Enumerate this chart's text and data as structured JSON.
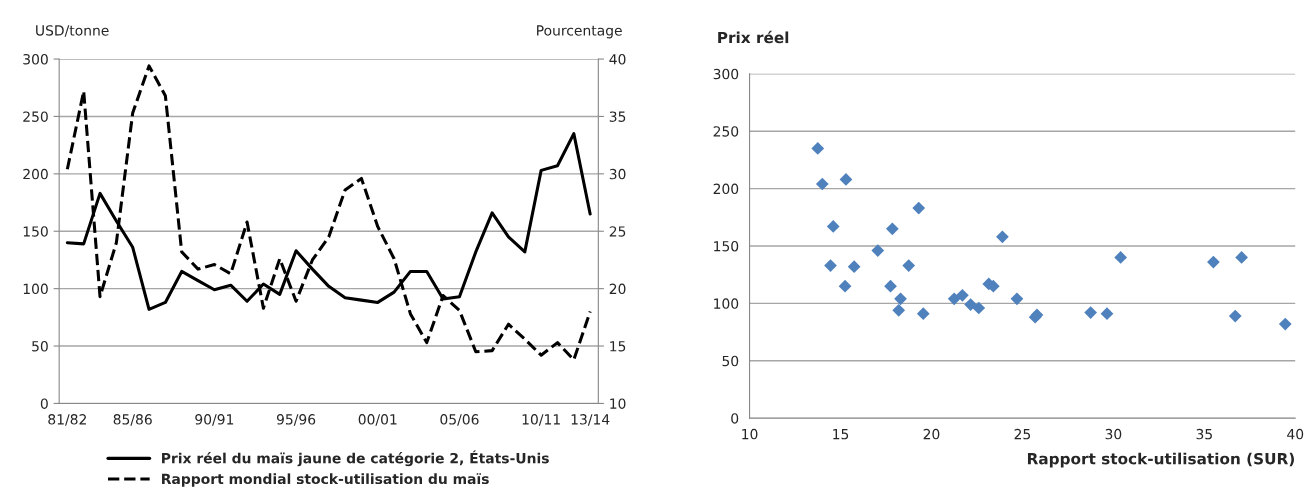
{
  "chart_data": [
    {
      "type": "line",
      "categories": [
        "81/82",
        null,
        null,
        null,
        "85/86",
        null,
        null,
        null,
        null,
        "90/91",
        null,
        null,
        null,
        null,
        "95/96",
        null,
        null,
        null,
        null,
        "00/01",
        null,
        null,
        null,
        null,
        "05/06",
        null,
        null,
        null,
        null,
        "10/11",
        null,
        null,
        "13/14"
      ],
      "series": [
        {
          "name": "Prix réel du maïs jaune de catégorie 2, États-Unis",
          "color": "#000000",
          "line_style": "solid",
          "values": [
            140,
            139,
            183,
            159,
            136,
            82,
            88,
            115,
            107,
            99,
            103,
            89,
            104,
            95,
            133,
            117,
            102,
            92,
            90,
            88,
            97,
            115,
            115,
            91,
            93,
            132,
            166,
            145,
            132,
            203,
            207,
            235,
            165
          ]
        },
        {
          "name": "Rapport mondial stock-utilisation du maïs",
          "color": "#000000",
          "line_style": "dashed",
          "axis": "y2",
          "values": [
            30.4,
            37.2,
            19.3,
            24.0,
            35.3,
            39.4,
            36.8,
            23.2,
            21.7,
            22.1,
            21.3,
            25.8,
            18.3,
            22.6,
            18.9,
            22.5,
            24.5,
            28.6,
            29.6,
            25.4,
            22.6,
            17.8,
            15.3,
            19.4,
            18.1,
            14.5,
            14.6,
            16.9,
            15.6,
            14.2,
            15.3,
            13.8,
            18.0
          ]
        }
      ],
      "ylabel": "USD/tonne",
      "y2label": "Pourcentage",
      "ylim": [
        0,
        300
      ],
      "yticks": [
        0,
        50,
        100,
        150,
        200,
        250,
        300
      ],
      "y2lim": [
        10,
        40
      ],
      "y2ticks": [
        10,
        15,
        20,
        25,
        30,
        35,
        40
      ],
      "grid": "y",
      "legend": "bottom",
      "marker": "none"
    },
    {
      "type": "scatter",
      "ylabel": "Prix réel",
      "xlabel": "Rapport stock-utilisation (SUR)",
      "color": "#4f81bd",
      "marker": "diamond",
      "x": [
        13.75,
        14.0,
        15.3,
        14.6,
        14.45,
        15.25,
        15.75,
        17.05,
        17.85,
        17.75,
        18.3,
        18.2,
        18.75,
        19.3,
        19.55,
        21.25,
        21.7,
        22.15,
        22.6,
        23.15,
        23.4,
        23.9,
        24.7,
        25.7,
        25.8,
        28.75,
        29.65,
        30.4,
        35.5,
        37.05,
        36.7,
        39.45
      ],
      "values": [
        235,
        204,
        208,
        167,
        133,
        115,
        132,
        146,
        165,
        115,
        104,
        94,
        133,
        183,
        91,
        104,
        107,
        99,
        96,
        117,
        115,
        158,
        104,
        88,
        90,
        92,
        91,
        140,
        136,
        140,
        89,
        82
      ],
      "xlim": [
        10,
        40
      ],
      "xticks": [
        10,
        15,
        20,
        25,
        30,
        35,
        40
      ],
      "ylim": [
        0,
        300
      ],
      "yticks": [
        0,
        50,
        100,
        150,
        200,
        250,
        300
      ],
      "grid": "y",
      "legend": false
    }
  ]
}
